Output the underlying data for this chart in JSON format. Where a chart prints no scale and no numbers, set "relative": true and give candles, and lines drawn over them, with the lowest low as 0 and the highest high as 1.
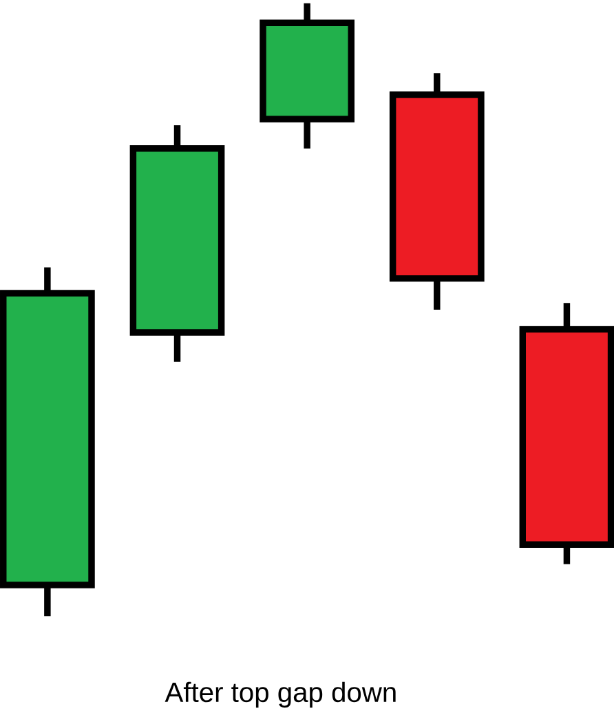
{
  "chart_data": {
    "type": "candlestick",
    "title": "After top gap down",
    "relative": true,
    "categories": [
      null,
      null,
      null,
      null,
      null
    ],
    "ohlc": [
      [
        0.051,
        0.569,
        0,
        0.527
      ],
      [
        0.463,
        0.801,
        0.415,
        0.763
      ],
      [
        0.811,
        1,
        0.763,
        0.968
      ],
      [
        0.851,
        0.886,
        0.5,
        0.551
      ],
      [
        0.468,
        0.511,
        0.085,
        0.117
      ]
    ],
    "colors": [
      "#22b14c",
      "#22b14c",
      "#22b14c",
      "#ed1c24",
      "#ed1c24"
    ]
  }
}
